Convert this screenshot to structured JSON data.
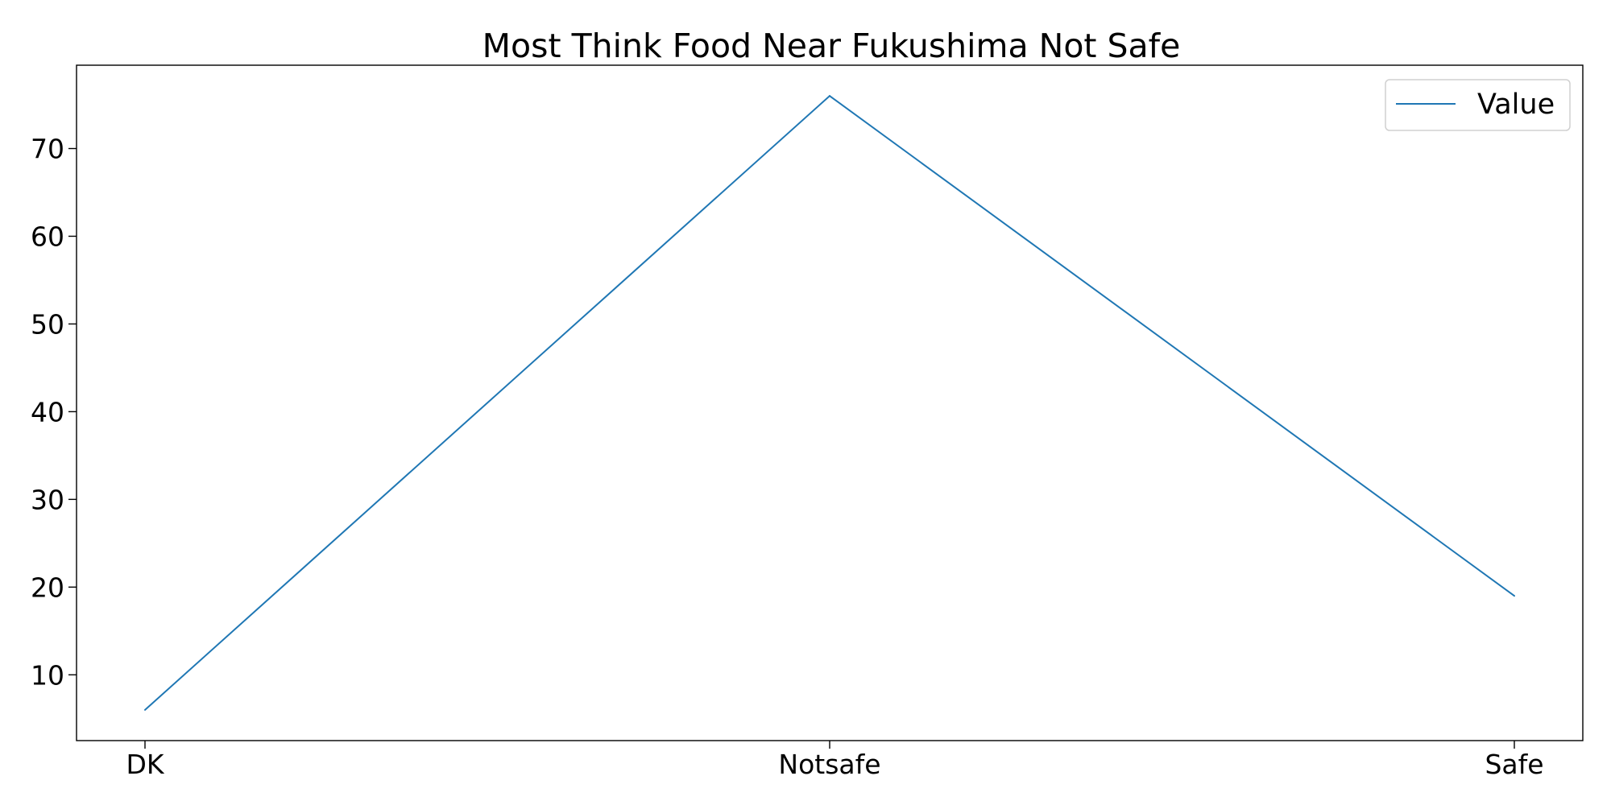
{
  "chart_data": {
    "type": "line",
    "title": "Most Think Food Near Fukushima Not Safe",
    "xlabel": "",
    "ylabel": "",
    "categories": [
      "DK",
      "Notsafe",
      "Safe"
    ],
    "series": [
      {
        "name": "Value",
        "values": [
          6,
          76,
          19
        ],
        "color": "#1f77b4"
      }
    ],
    "ylim": [
      2.5,
      79.5
    ],
    "yticks": [
      10,
      20,
      30,
      40,
      50,
      60,
      70
    ],
    "grid": false,
    "legend_position": "top-right"
  }
}
